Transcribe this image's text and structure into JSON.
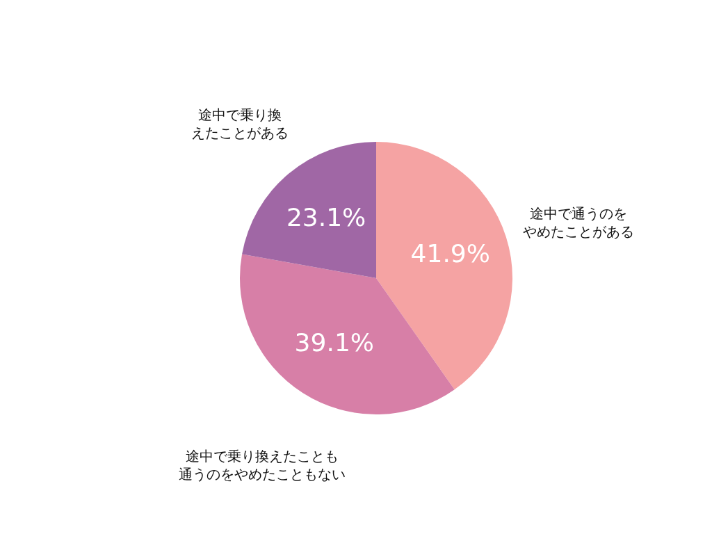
{
  "chart_data": {
    "type": "pie",
    "categories": [
      "途中で通うのをやめたことがある",
      "途中で乗り換えたことも通うのをやめたこともない",
      "途中で乗り換えたことがある"
    ],
    "values": [
      41.9,
      39.1,
      23.1
    ],
    "value_labels": [
      "41.9%",
      "39.1%",
      "23.1%"
    ],
    "colors": [
      "#f5a3a3",
      "#d77fa7",
      "#a067a5"
    ],
    "legend": false
  }
}
